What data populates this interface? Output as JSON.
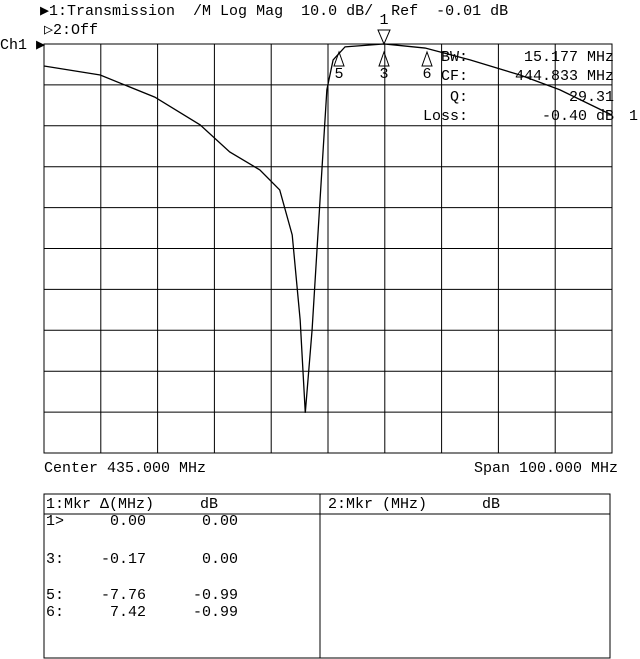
{
  "header": {
    "line1": "▶1:Transmission  /M Log Mag  10.0 dB/  Ref  -0.01 dB",
    "line2": "▷2:Off",
    "channel": "Ch1 ▶"
  },
  "chart_data": {
    "type": "line",
    "x": [
      385,
      394.9,
      404.5,
      412.5,
      417.7,
      423.0,
      426.5,
      428.7,
      430.1,
      431.0,
      432.2,
      433.6,
      434.8,
      435.9,
      438.0,
      444.9,
      452.1,
      460.0,
      468.8,
      475.8,
      485
    ],
    "series": [
      {
        "name": "1",
        "color": "#000000",
        "values": [
          -5.4,
          -7.6,
          -13.0,
          -19.8,
          -26.4,
          -30.8,
          -35.7,
          -46.7,
          -67.5,
          -90.2,
          -69.9,
          -38.1,
          -11.2,
          -3.9,
          -0.7,
          0,
          -1.0,
          -3.9,
          -7.6,
          -11.2,
          -17.4
        ]
      }
    ],
    "xlim": [
      385,
      485
    ],
    "ylim": [
      -100.01,
      -0.01
    ],
    "marker_labels": [
      "5",
      "3",
      "6"
    ],
    "ref_marker": "1",
    "stats": [
      [
        "BW:",
        "15.177 MHz"
      ],
      [
        "CF:",
        "444.833 MHz"
      ],
      [
        "Q:",
        "29.31"
      ],
      [
        "Loss:",
        "-0.40 dB"
      ]
    ],
    "center": "Center 435.000 MHz",
    "span": "Span 100.000 MHz"
  },
  "table": {
    "left_header": [
      "1:Mkr Δ(MHz)",
      "dB"
    ],
    "right_header": [
      "2:Mkr (MHz)",
      "dB"
    ],
    "rows": [
      [
        "1>",
        "0.00",
        "0.00"
      ],
      [
        "3:",
        "-0.17",
        "0.00"
      ],
      [
        "5:",
        "-7.76",
        "-0.99"
      ],
      [
        "6:",
        "7.42",
        "-0.99"
      ]
    ]
  }
}
